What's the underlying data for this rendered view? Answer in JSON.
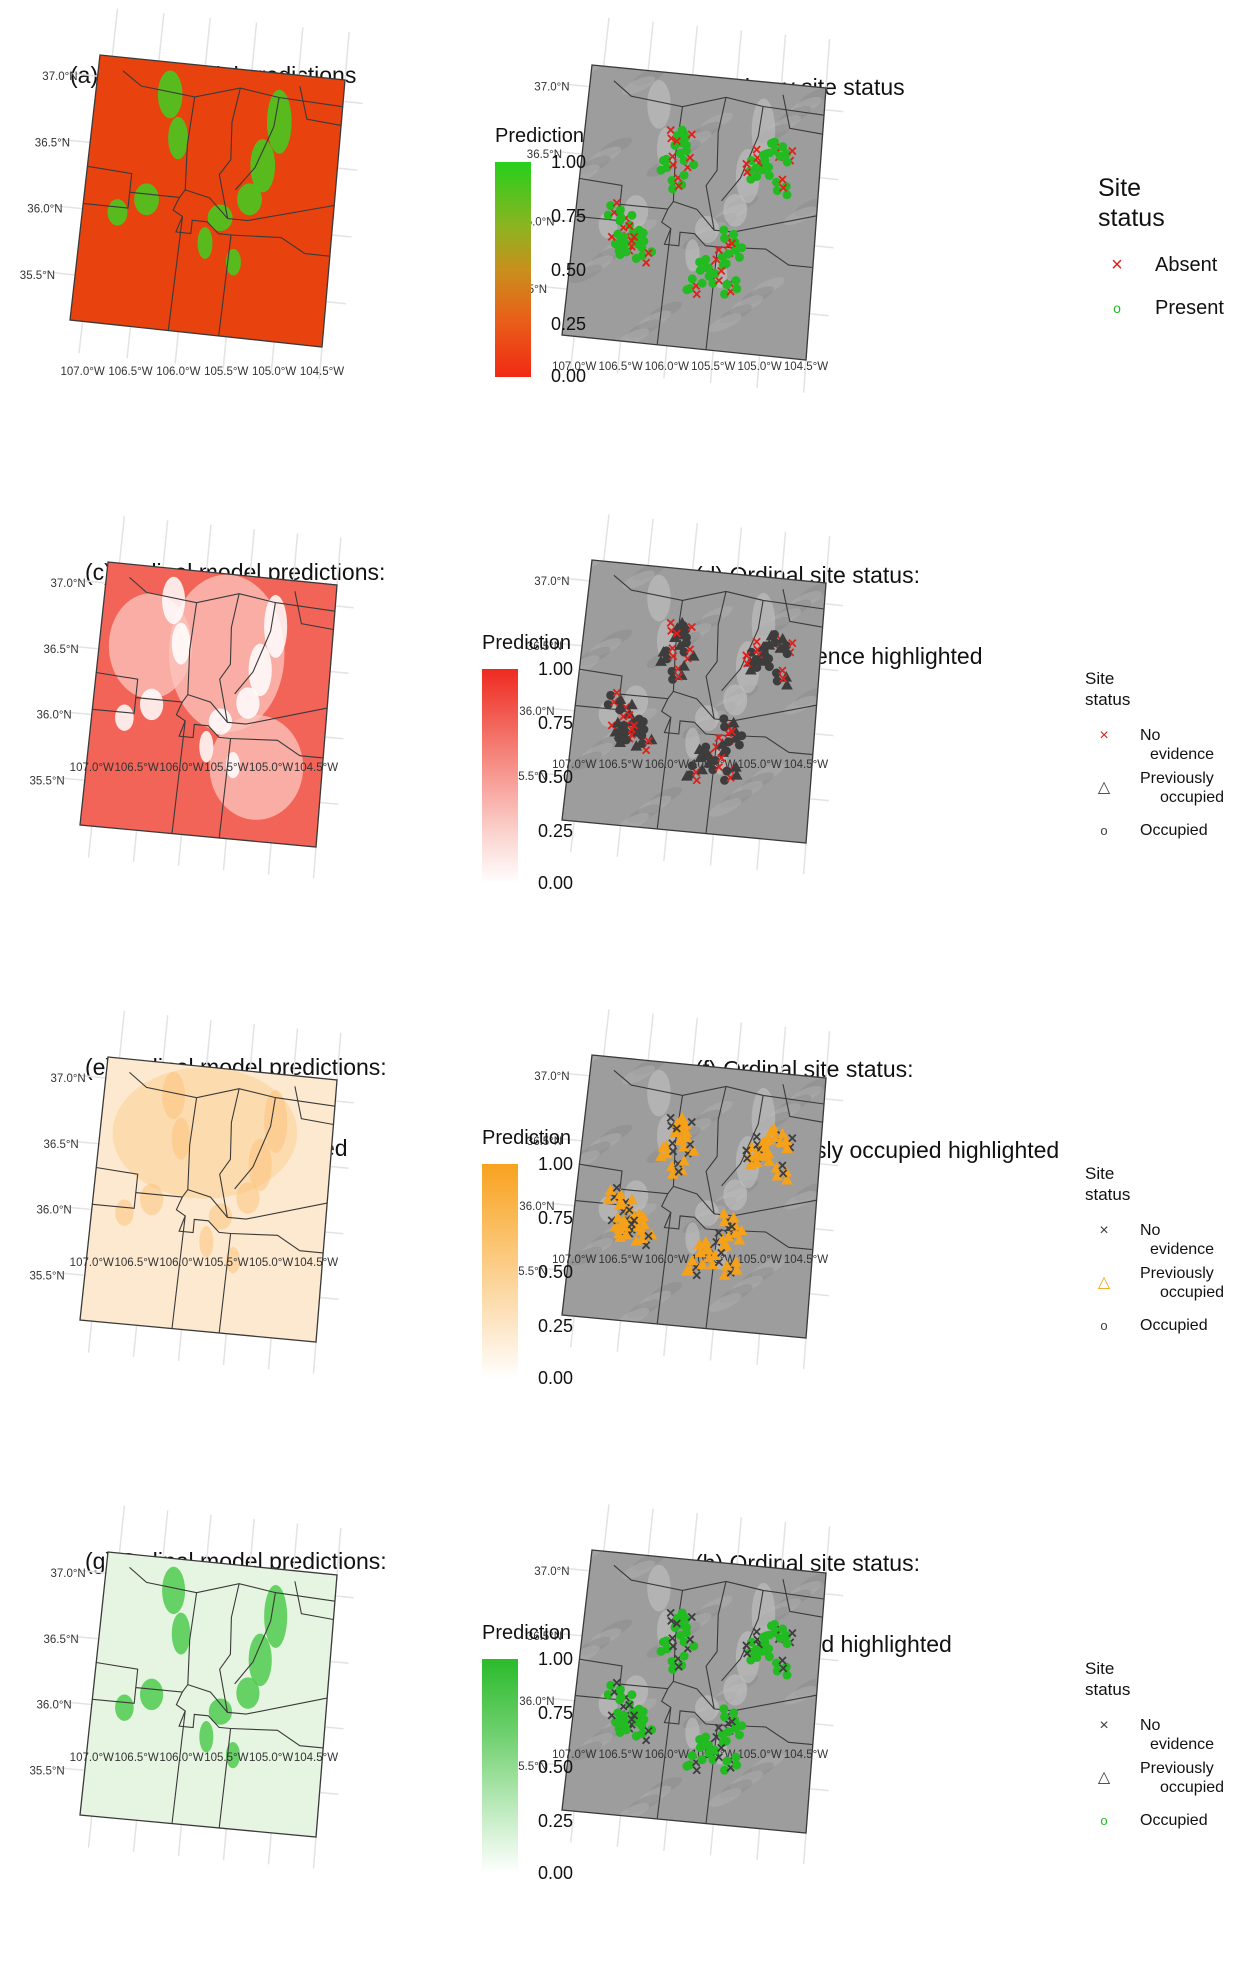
{
  "panels": {
    "a": {
      "title_1": "(a) Binary model predictions",
      "title_2": ""
    },
    "b": {
      "title_1": "(b) Binary site status",
      "title_2": ""
    },
    "c": {
      "title_1": "(c) Ordinal model predictions:",
      "title_2": "No evidence"
    },
    "d": {
      "title_1": "(d) Ordinal site status:",
      "title_2": "No evidence highlighted"
    },
    "e": {
      "title_1": "(e) Ordinal model predictions:",
      "title_2": "Previously occupied"
    },
    "f": {
      "title_1": "(f) Ordinal site status:",
      "title_2": "Previously occupied highlighted"
    },
    "g": {
      "title_1": "(g) Ordinal model predictions:",
      "title_2": "Occupied"
    },
    "h": {
      "title_1": "(h) Ordinal site status:",
      "title_2": "Occupied highlighted"
    }
  },
  "axes": {
    "lat_labels": [
      "37.0°N",
      "36.5°N",
      "36.0°N",
      "35.5°N"
    ],
    "lon_labels": [
      "107.0°W",
      "106.5°W",
      "106.0°W",
      "105.5°W",
      "105.0°W",
      "104.5°W"
    ]
  },
  "prediction_legend": {
    "title": "Prediction",
    "ticks": [
      "1.00",
      "0.75",
      "0.50",
      "0.25",
      "0.00"
    ],
    "colors": {
      "binary": [
        "#2ecc1e",
        "#e8390e"
      ],
      "no_evidence": [
        "#ee2a20",
        "#ffffff"
      ],
      "previously_occupied": [
        "#f8a21f",
        "#ffffff"
      ],
      "occupied": [
        "#2bbb2b",
        "#ffffff"
      ]
    }
  },
  "binary_legend": {
    "title_1": "Site",
    "title_2": "status",
    "absent": "Absent",
    "present": "Present",
    "absent_symbol": "×",
    "present_symbol": "o",
    "absent_color": "#e0201a",
    "present_color": "#22bb22"
  },
  "ordinal_legend": {
    "title_1": "Site",
    "title_2": "status",
    "no_evidence_1": "No",
    "no_evidence_2": "evidence",
    "prev_1": "Previously",
    "prev_2": "occupied",
    "occupied": "Occupied",
    "symbols": {
      "no_evidence": "×",
      "previously_occupied": "△",
      "occupied": "o"
    }
  },
  "colors": {
    "hillshade": "#9a9a9a",
    "boundary": "#3a3a3a",
    "red": "#e0201a",
    "orange": "#f5a11a",
    "green": "#22bb22",
    "dark": "#3d3d3d"
  }
}
